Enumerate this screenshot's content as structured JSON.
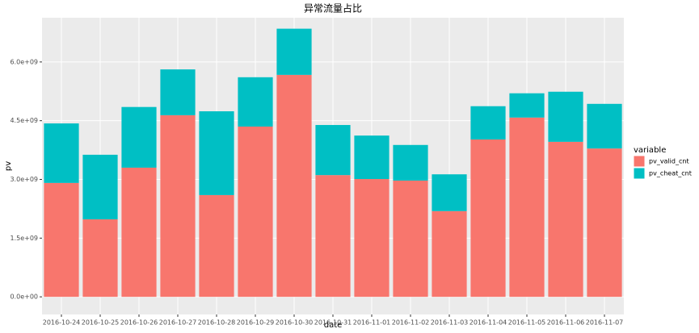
{
  "chart_data": {
    "type": "stacked_bar",
    "title": "异常流量占比",
    "x_label": "date",
    "y_label": "pv",
    "legend_title": "variable",
    "legend_position": "right",
    "grid": true,
    "categories": [
      "2016-10-24",
      "2016-10-25",
      "2016-10-26",
      "2016-10-27",
      "2016-10-28",
      "2016-10-29",
      "2016-10-30",
      "2016-10-31",
      "2016-11-01",
      "2016-11-02",
      "2016-11-03",
      "2016-11-04",
      "2016-11-05",
      "2016-11-06",
      "2016-11-07"
    ],
    "series": [
      {
        "name": "pv_valid_cnt",
        "color": "#F8766D",
        "values": [
          2910000000,
          1980000000,
          3300000000,
          4640000000,
          2600000000,
          4350000000,
          5670000000,
          3110000000,
          3010000000,
          2970000000,
          2190000000,
          4020000000,
          4580000000,
          3960000000,
          3790000000
        ]
      },
      {
        "name": "pv_cheat_cnt",
        "color": "#00BFC4",
        "values": [
          1520000000,
          1650000000,
          1550000000,
          1170000000,
          2140000000,
          1260000000,
          1180000000,
          1280000000,
          1110000000,
          910000000,
          940000000,
          850000000,
          620000000,
          1280000000,
          1140000000
        ]
      }
    ],
    "ylim": [
      -450000000,
      7130000000
    ],
    "yticks": [
      {
        "value": 0,
        "label": "0.0e+00"
      },
      {
        "value": 1500000000,
        "label": "1.5e+09"
      },
      {
        "value": 3000000000,
        "label": "3.0e+09"
      },
      {
        "value": 4500000000,
        "label": "4.5e+09"
      },
      {
        "value": 6000000000,
        "label": "6.0e+09"
      }
    ]
  }
}
